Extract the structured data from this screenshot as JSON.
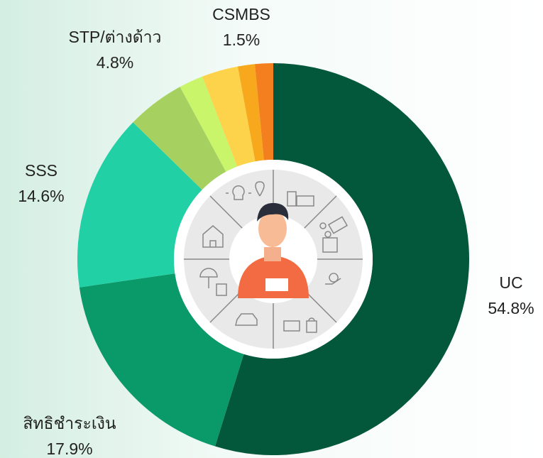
{
  "chart_data": {
    "type": "donut",
    "categories": [
      "UC",
      "สิทธิชำระเงิน",
      "SSS",
      "STP/ต่างด้าว",
      null,
      null,
      null,
      "CSMBS"
    ],
    "values": [
      54.8,
      17.9,
      14.6,
      4.8,
      2.0,
      3.0,
      1.4,
      1.5
    ],
    "value_labels": [
      "54.8%",
      "17.9%",
      "14.6%",
      "4.8%",
      null,
      null,
      null,
      "1.5%"
    ],
    "colors": [
      "#03573a",
      "#0a9a6a",
      "#22d0a6",
      "#a6d160",
      "#c8f56a",
      "#fcd34a",
      "#f7a81c",
      "#f47f1e"
    ]
  }
}
